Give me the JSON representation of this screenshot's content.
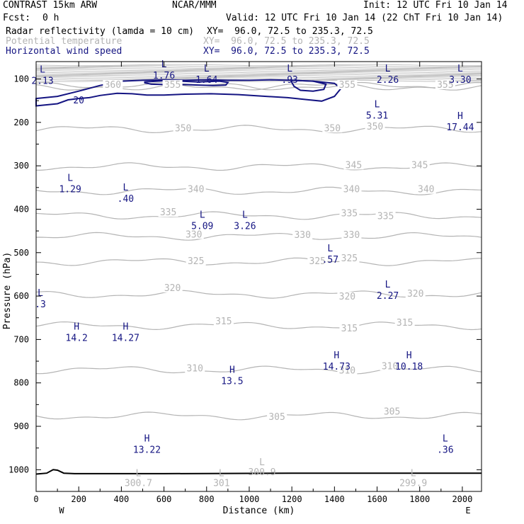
{
  "header": {
    "model": "CONTRAST 15km ARW",
    "org": "NCAR/MMM",
    "init": "Init: 12 UTC Fri 10 Jan 14",
    "fcst_label": "Fcst:",
    "fcst_value": "0 h",
    "valid": "Valid: 12 UTC Fri 10 Jan 14 (22 ChT Fri 10 Jan 14)",
    "fields": [
      {
        "name": "Radar reflectivity (lamda = 10 cm)",
        "xy": "XY=  96.0, 72.5 to 235.3, 72.5",
        "color": "#000000"
      },
      {
        "name": "Potential temperature",
        "xy": "XY=  96.0, 72.5 to 235.3, 72.5",
        "color": "#b4b4b4"
      },
      {
        "name": "Horizontal wind speed",
        "xy": "XY=  96.0, 72.5 to 235.3, 72.5",
        "color": "#141482"
      }
    ]
  },
  "chart_data": {
    "type": "contour",
    "xlabel": "Distance (km)",
    "ylabel": "Pressure (hPa)",
    "xlim": [
      0,
      2090
    ],
    "ylim": [
      1050,
      60
    ],
    "xticks": [
      0,
      200,
      400,
      600,
      800,
      1000,
      1200,
      1400,
      1600,
      1800,
      2000
    ],
    "yticks": [
      100,
      200,
      300,
      400,
      500,
      600,
      700,
      800,
      900,
      1000
    ],
    "x_end_labels": {
      "left": "W",
      "right": "E"
    },
    "theta_contours": [
      {
        "level": 305,
        "labels": [
          {
            "x": 1130,
            "p": 882,
            "text": "305"
          },
          {
            "x": 1670,
            "p": 870,
            "text": "305"
          }
        ]
      },
      {
        "level": 310,
        "labels": [
          {
            "x": 745,
            "p": 770,
            "text": "310"
          },
          {
            "x": 1460,
            "p": 775,
            "text": "310"
          },
          {
            "x": 1660,
            "p": 765,
            "text": "310"
          }
        ]
      },
      {
        "level": 315,
        "labels": [
          {
            "x": 880,
            "p": 662,
            "text": "315"
          },
          {
            "x": 1470,
            "p": 678,
            "text": "315"
          },
          {
            "x": 1730,
            "p": 665,
            "text": "315"
          }
        ]
      },
      {
        "level": 320,
        "labels": [
          {
            "x": 640,
            "p": 585,
            "text": "320"
          },
          {
            "x": 1460,
            "p": 605,
            "text": "320"
          },
          {
            "x": 1780,
            "p": 598,
            "text": "320"
          }
        ]
      },
      {
        "level": 325,
        "labels": [
          {
            "x": 750,
            "p": 523,
            "text": "325"
          },
          {
            "x": 1320,
            "p": 523,
            "text": "325"
          },
          {
            "x": 1470,
            "p": 517,
            "text": "325"
          }
        ]
      },
      {
        "level": 330,
        "labels": [
          {
            "x": 740,
            "p": 462,
            "text": "330"
          },
          {
            "x": 1250,
            "p": 463,
            "text": "330"
          },
          {
            "x": 1480,
            "p": 463,
            "text": "330"
          }
        ]
      },
      {
        "level": 335,
        "labels": [
          {
            "x": 620,
            "p": 411,
            "text": "335"
          },
          {
            "x": 1470,
            "p": 413,
            "text": "335"
          },
          {
            "x": 1640,
            "p": 420,
            "text": "335"
          }
        ]
      },
      {
        "level": 340,
        "labels": [
          {
            "x": 750,
            "p": 358,
            "text": "340"
          },
          {
            "x": 1480,
            "p": 358,
            "text": "340"
          },
          {
            "x": 1830,
            "p": 358,
            "text": "340"
          }
        ]
      },
      {
        "level": 345,
        "labels": [
          {
            "x": 1490,
            "p": 302,
            "text": "345"
          },
          {
            "x": 1800,
            "p": 302,
            "text": "345"
          }
        ]
      },
      {
        "level": 350,
        "labels": [
          {
            "x": 690,
            "p": 217,
            "text": "350"
          },
          {
            "x": 1390,
            "p": 217,
            "text": "350"
          },
          {
            "x": 1590,
            "p": 213,
            "text": "350"
          }
        ]
      },
      {
        "level": 355,
        "labels": [
          {
            "x": 640,
            "p": 117,
            "text": "355"
          },
          {
            "x": 1460,
            "p": 117,
            "text": "355"
          },
          {
            "x": 1920,
            "p": 117,
            "text": "355"
          }
        ]
      },
      {
        "level": 360,
        "labels": [
          {
            "x": 360,
            "p": 117,
            "text": "360"
          }
        ]
      }
    ],
    "wind_contours": [
      {
        "level": 20,
        "labels": [
          {
            "x": 200,
            "p": 150,
            "text": "20"
          }
        ]
      }
    ],
    "wind_extrema": [
      {
        "type": "L",
        "x": 30,
        "p": 85,
        "value": "2.13"
      },
      {
        "type": "L",
        "x": 600,
        "p": 73,
        "value": "1.76"
      },
      {
        "type": "L",
        "x": 800,
        "p": 83,
        "value": "1.64"
      },
      {
        "type": "L",
        "x": 1190,
        "p": 83,
        "value": ".93"
      },
      {
        "type": "L",
        "x": 1650,
        "p": 83,
        "value": "2.26"
      },
      {
        "type": "L",
        "x": 1990,
        "p": 83,
        "value": "3.30"
      },
      {
        "type": "L",
        "x": 1600,
        "p": 165,
        "value": "5.31"
      },
      {
        "type": "H",
        "x": 1990,
        "p": 192,
        "value": "17.44"
      },
      {
        "type": "L",
        "x": 160,
        "p": 335,
        "value": "1.29"
      },
      {
        "type": "L",
        "x": 420,
        "p": 357,
        "value": ".40"
      },
      {
        "type": "L",
        "x": 780,
        "p": 420,
        "value": "5.09"
      },
      {
        "type": "L",
        "x": 980,
        "p": 420,
        "value": "3.26"
      },
      {
        "type": "L",
        "x": 1380,
        "p": 497,
        "value": ".57"
      },
      {
        "type": "L",
        "x": 20,
        "p": 600,
        "value": ".3"
      },
      {
        "type": "L",
        "x": 1650,
        "p": 580,
        "value": "2.27"
      },
      {
        "type": "H",
        "x": 190,
        "p": 677,
        "value": "14.2"
      },
      {
        "type": "H",
        "x": 420,
        "p": 677,
        "value": "14.27"
      },
      {
        "type": "H",
        "x": 1410,
        "p": 743,
        "value": "14.73"
      },
      {
        "type": "H",
        "x": 1750,
        "p": 743,
        "value": "10.18"
      },
      {
        "type": "H",
        "x": 920,
        "p": 777,
        "value": "13.5"
      },
      {
        "type": "H",
        "x": 520,
        "p": 935,
        "value": "13.22"
      },
      {
        "type": "L",
        "x": 1920,
        "p": 935,
        "value": ".36"
      }
    ],
    "theta_extrema": [
      {
        "type": "L",
        "x": 480,
        "p": 1015,
        "value": "300.7"
      },
      {
        "type": "L",
        "x": 870,
        "p": 1015,
        "value": "301"
      },
      {
        "type": "L",
        "x": 1060,
        "p": 990,
        "value": "300.9"
      },
      {
        "type": "L",
        "x": 1770,
        "p": 1015,
        "value": "299.9"
      }
    ],
    "reflectivity": [
      {
        "name": "terrain",
        "points": [
          [
            0,
            1010
          ],
          [
            50,
            1008
          ],
          [
            80,
            1000
          ],
          [
            100,
            1001
          ],
          [
            130,
            1008
          ],
          [
            180,
            1009
          ],
          [
            600,
            1009
          ],
          [
            1200,
            1008
          ],
          [
            1800,
            1008
          ],
          [
            2090,
            1008
          ]
        ]
      }
    ],
    "wind_closed_contours": [
      {
        "points": [
          [
            0,
            145
          ],
          [
            100,
            140
          ],
          [
            200,
            128
          ],
          [
            300,
            115
          ],
          [
            400,
            105
          ],
          [
            500,
            103
          ],
          [
            600,
            102
          ],
          [
            700,
            103
          ],
          [
            800,
            102
          ],
          [
            900,
            103
          ],
          [
            1000,
            103
          ],
          [
            1100,
            102
          ],
          [
            1200,
            103
          ],
          [
            1300,
            105
          ],
          [
            1400,
            110
          ],
          [
            1430,
            122
          ],
          [
            1400,
            140
          ],
          [
            1340,
            151
          ],
          [
            1280,
            148
          ],
          [
            1180,
            143
          ],
          [
            1080,
            140
          ],
          [
            950,
            136
          ],
          [
            820,
            134
          ],
          [
            700,
            135
          ],
          [
            600,
            137
          ],
          [
            520,
            137
          ],
          [
            450,
            134
          ],
          [
            380,
            133
          ],
          [
            300,
            138
          ],
          [
            250,
            143
          ],
          [
            200,
            145
          ],
          [
            150,
            148
          ],
          [
            100,
            157
          ],
          [
            0,
            162
          ]
        ]
      },
      {
        "points": [
          [
            510,
            107
          ],
          [
            600,
            104
          ],
          [
            680,
            105
          ],
          [
            760,
            107
          ],
          [
            860,
            105
          ],
          [
            900,
            108
          ],
          [
            890,
            114
          ],
          [
            830,
            115
          ],
          [
            760,
            114
          ],
          [
            700,
            113
          ],
          [
            620,
            113
          ],
          [
            540,
            112
          ],
          [
            510,
            109
          ]
        ]
      },
      {
        "points": [
          [
            1200,
            103
          ],
          [
            1300,
            105
          ],
          [
            1360,
            112
          ],
          [
            1350,
            124
          ],
          [
            1300,
            128
          ],
          [
            1240,
            126
          ],
          [
            1210,
            117
          ],
          [
            1200,
            108
          ]
        ]
      }
    ]
  }
}
